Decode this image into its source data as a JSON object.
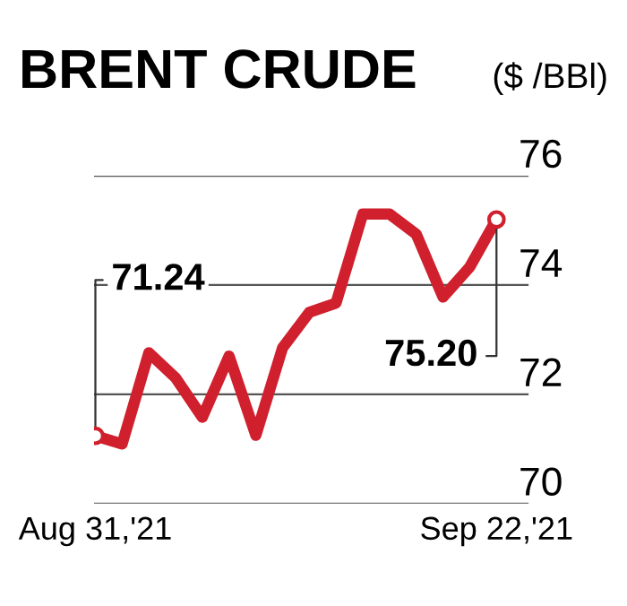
{
  "chart_data": {
    "type": "line",
    "title": "BRENT CRUDE",
    "ylabel": "($ /BBl)",
    "categories": [
      "Aug 31,'21",
      null,
      null,
      null,
      null,
      null,
      null,
      null,
      null,
      null,
      null,
      null,
      null,
      null,
      null,
      "Sep 22,'21"
    ],
    "series": [
      {
        "color": "#d0202e",
        "values": [
          71.24,
          71.09,
          72.76,
          72.3,
          71.58,
          72.7,
          71.25,
          72.85,
          73.5,
          73.67,
          75.3,
          75.3,
          74.93,
          73.78,
          74.33,
          75.2
        ]
      }
    ],
    "ylim": [
      70,
      76
    ],
    "yticks": [
      70,
      72,
      74,
      76
    ],
    "grid": "y",
    "line_style": "solid",
    "annotations": [
      {
        "text": "71.24",
        "x": "Aug 31,'21",
        "y": 71.24
      },
      {
        "text": "75.20",
        "x": "Sep 22,'21",
        "y": 75.2
      }
    ]
  }
}
